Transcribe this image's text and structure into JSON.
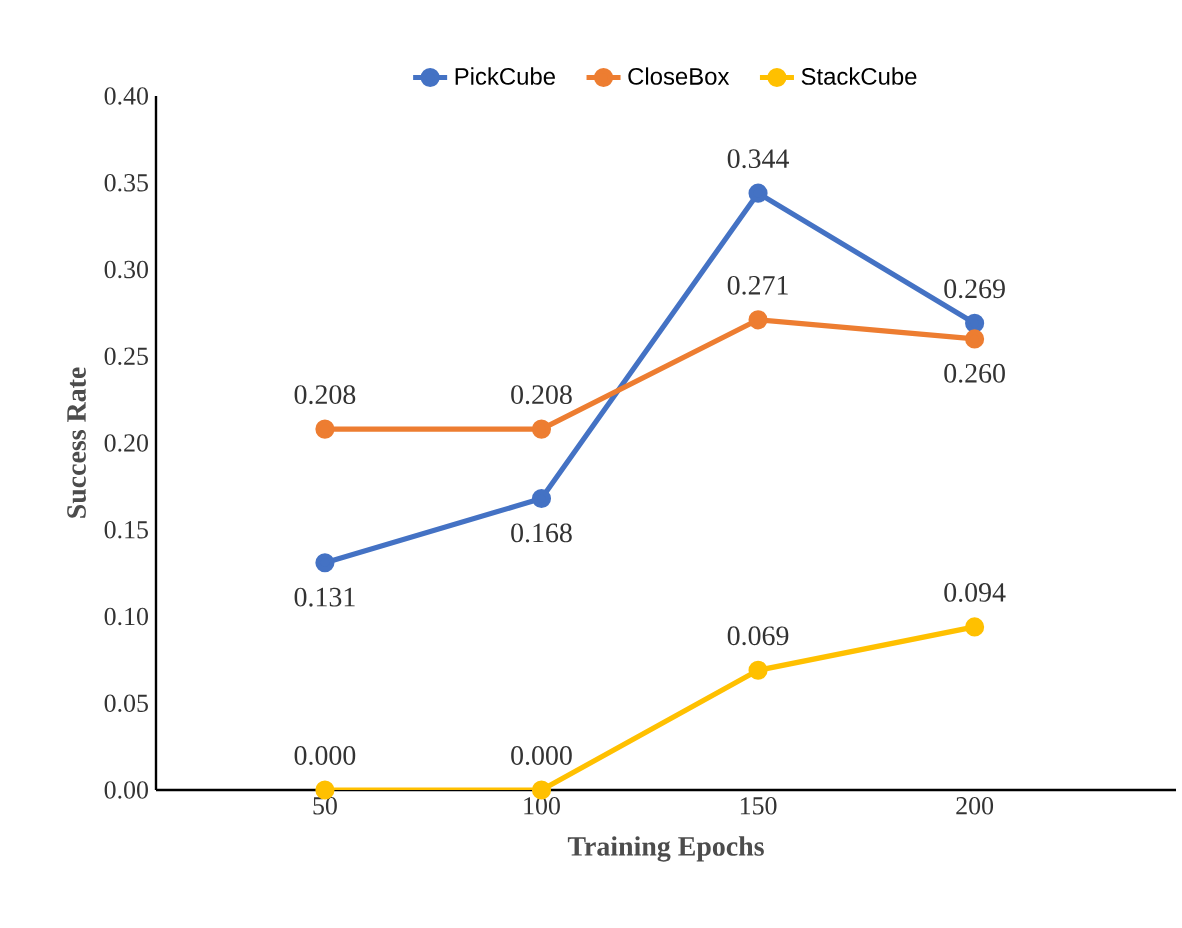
{
  "chart_data": {
    "type": "line",
    "xlabel": "Training Epochs",
    "ylabel": "Success Rate",
    "categories": [
      "50",
      "100",
      "150",
      "200"
    ],
    "series": [
      {
        "name": "PickCube",
        "color": "#4472c4",
        "values": [
          0.131,
          0.168,
          0.344,
          0.269
        ],
        "value_labels": [
          "0.131",
          "0.168",
          "0.344",
          "0.269"
        ]
      },
      {
        "name": "CloseBox",
        "color": "#ed7d31",
        "values": [
          0.208,
          0.208,
          0.271,
          0.26
        ],
        "value_labels": [
          "0.208",
          "0.208",
          "0.271",
          "0.260"
        ]
      },
      {
        "name": "StackCube",
        "color": "#ffc000",
        "values": [
          0.0,
          0.0,
          0.069,
          0.094
        ],
        "value_labels": [
          "0.000",
          "0.000",
          "0.069",
          "0.094"
        ]
      }
    ],
    "ylim": [
      0,
      0.4
    ],
    "yticks": [
      {
        "value": 0,
        "label": "0.00"
      },
      {
        "value": 0.05,
        "label": "0.05"
      },
      {
        "value": 0.1,
        "label": "0.10"
      },
      {
        "value": 0.15,
        "label": "0.15"
      },
      {
        "value": 0.2,
        "label": "0.20"
      },
      {
        "value": 0.25,
        "label": "0.25"
      },
      {
        "value": 0.3,
        "label": "0.30"
      },
      {
        "value": 0.35,
        "label": "0.35"
      },
      {
        "value": 0.4,
        "label": "0.40"
      }
    ],
    "legend": "top",
    "marker": "circle",
    "line_style": "solid"
  }
}
